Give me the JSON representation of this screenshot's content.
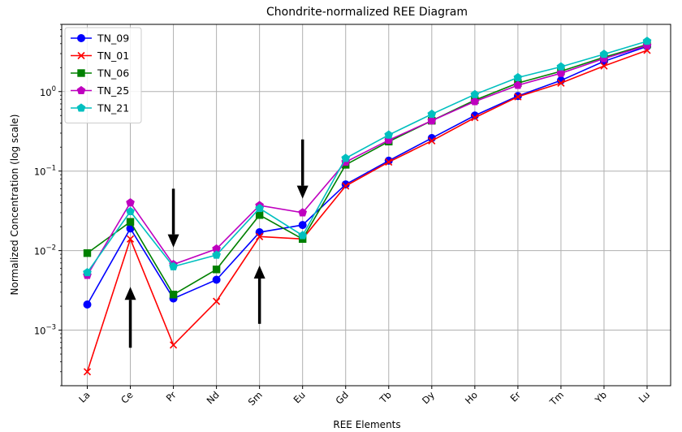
{
  "chart_data": {
    "type": "line",
    "title": "Chondrite-normalized REE Diagram",
    "xlabel": "REE Elements",
    "ylabel": "Normalized Concentration (log scale)",
    "yscale": "log",
    "ylim": [
      0.0002,
      7
    ],
    "grid": true,
    "legend_position": "top-left",
    "categories": [
      "La",
      "Ce",
      "Pr",
      "Nd",
      "Sm",
      "Eu",
      "Gd",
      "Tb",
      "Dy",
      "Ho",
      "Er",
      "Tm",
      "Yb",
      "Lu"
    ],
    "y_tick_values": [
      0.001,
      0.01,
      0.1,
      1
    ],
    "y_tick_labels": [
      {
        "base": "10",
        "exp": "−3"
      },
      {
        "base": "10",
        "exp": "−2"
      },
      {
        "base": "10",
        "exp": "−1"
      },
      {
        "base": "10",
        "exp": "0"
      }
    ],
    "series": [
      {
        "name": "TN_09",
        "color": "#0000ff",
        "marker": "circle",
        "values": [
          0.0021,
          0.019,
          0.0025,
          0.0043,
          0.017,
          0.021,
          0.068,
          0.135,
          0.26,
          0.5,
          0.88,
          1.38,
          2.4,
          3.7
        ]
      },
      {
        "name": "TN_01",
        "color": "#ff0000",
        "marker": "x",
        "values": [
          0.0003,
          0.014,
          0.00065,
          0.0023,
          0.015,
          0.014,
          0.065,
          0.13,
          0.24,
          0.47,
          0.86,
          1.28,
          2.1,
          3.3
        ]
      },
      {
        "name": "TN_06",
        "color": "#008000",
        "marker": "square",
        "values": [
          0.0093,
          0.023,
          0.0028,
          0.0058,
          0.028,
          0.014,
          0.12,
          0.235,
          0.43,
          0.78,
          1.28,
          1.8,
          2.7,
          3.9
        ]
      },
      {
        "name": "TN_25",
        "color": "#bf00bf",
        "marker": "pentagon",
        "values": [
          0.0049,
          0.04,
          0.0067,
          0.0105,
          0.037,
          0.03,
          0.13,
          0.245,
          0.43,
          0.75,
          1.2,
          1.7,
          2.6,
          3.8
        ]
      },
      {
        "name": "TN_21",
        "color": "#00bfbf",
        "marker": "pentagon",
        "values": [
          0.0053,
          0.031,
          0.0063,
          0.0088,
          0.034,
          0.0155,
          0.145,
          0.285,
          0.52,
          0.92,
          1.5,
          2.05,
          2.95,
          4.3
        ]
      }
    ],
    "annotations": [
      {
        "kind": "arrow",
        "direction": "up",
        "category": "Ce",
        "from_value": 0.0006,
        "to_value": 0.0035
      },
      {
        "kind": "arrow",
        "direction": "down",
        "category": "Pr",
        "from_value": 0.06,
        "to_value": 0.011
      },
      {
        "kind": "arrow",
        "direction": "up",
        "category": "Sm",
        "from_value": 0.0012,
        "to_value": 0.0065
      },
      {
        "kind": "arrow",
        "direction": "down",
        "category": "Eu",
        "from_value": 0.25,
        "to_value": 0.045
      }
    ]
  }
}
